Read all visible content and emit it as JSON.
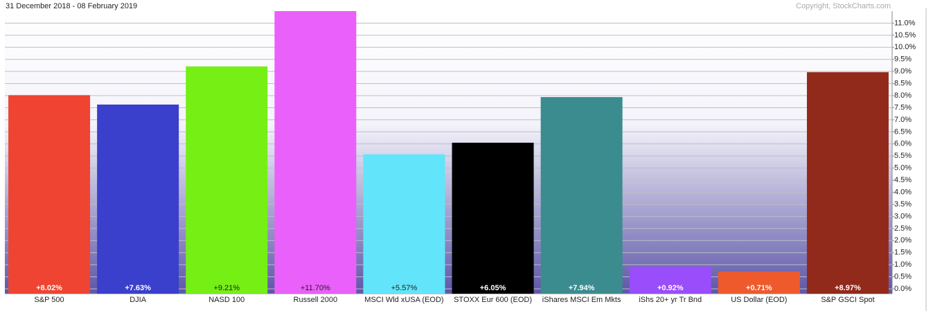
{
  "chart_data": {
    "type": "bar",
    "title": "31 December 2018 - 08 February 2019",
    "copyright": "Copyright, StockCharts.com",
    "categories": [
      "S&P 500",
      "DJIA",
      "NASD 100",
      "Russell 2000",
      "MSCI Wld xUSA (EOD)",
      "STOXX Eur 600 (EOD)",
      "iShares MSCI Em Mkts",
      "iShs 20+ yr Tr Bnd",
      "US Dollar (EOD)",
      "S&P GSCI Spot"
    ],
    "values": [
      8.02,
      7.63,
      9.21,
      11.7,
      5.57,
      6.05,
      7.94,
      0.92,
      0.71,
      8.97
    ],
    "value_labels": [
      "+8.02%",
      "+7.63%",
      "+9.21%",
      "+11.70%",
      "+5.57%",
      "+6.05%",
      "+7.94%",
      "+0.92%",
      "+0.71%",
      "+8.97%"
    ],
    "colors": [
      "#ee4431",
      "#3a3fcc",
      "#76ef15",
      "#ea60fa",
      "#62e5fb",
      "#000000",
      "#3a8c8f",
      "#9a4dfa",
      "#ef5a2c",
      "#922a1b"
    ],
    "ylim": [
      -0.2,
      11.5
    ],
    "yticks": [
      {
        "value": 0,
        "label": "0.0%"
      },
      {
        "value": 0.5,
        "label": "0.5%"
      },
      {
        "value": 1,
        "label": "1.0%"
      },
      {
        "value": 1.5,
        "label": "1.5%"
      },
      {
        "value": 2,
        "label": "2.0%"
      },
      {
        "value": 2.5,
        "label": "2.5%"
      },
      {
        "value": 3,
        "label": "3.0%"
      },
      {
        "value": 3.5,
        "label": "3.5%"
      },
      {
        "value": 4,
        "label": "4.0%"
      },
      {
        "value": 4.5,
        "label": "4.5%"
      },
      {
        "value": 5,
        "label": "5.0%"
      },
      {
        "value": 5.5,
        "label": "5.5%"
      },
      {
        "value": 6,
        "label": "6.0%"
      },
      {
        "value": 6.5,
        "label": "6.5%"
      },
      {
        "value": 7,
        "label": "7.0%"
      },
      {
        "value": 7.5,
        "label": "7.5%"
      },
      {
        "value": 8,
        "label": "8.0%"
      },
      {
        "value": 8.5,
        "label": "8.5%"
      },
      {
        "value": 9,
        "label": "9.0%"
      },
      {
        "value": 9.5,
        "label": "9.5%"
      },
      {
        "value": 10,
        "label": "10.0%"
      },
      {
        "value": 10.5,
        "label": "10.5%"
      },
      {
        "value": 11,
        "label": "11.0%"
      }
    ],
    "grid": true
  }
}
